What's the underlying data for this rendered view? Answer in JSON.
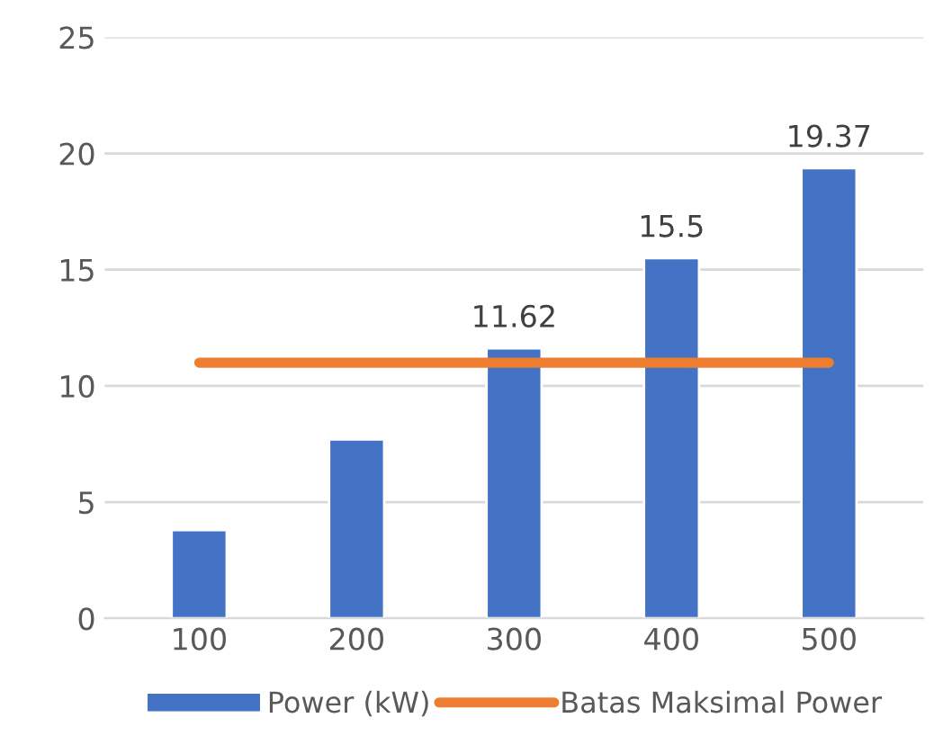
{
  "chart_data": {
    "type": "bar",
    "categories": [
      "100",
      "200",
      "300",
      "400",
      "500"
    ],
    "series": [
      {
        "name": "Power (kW)",
        "color": "#4472c4",
        "values": [
          3.8,
          7.7,
          11.62,
          15.5,
          19.37
        ],
        "value_labels": [
          null,
          null,
          "11.62",
          "15.5",
          "19.37"
        ]
      },
      {
        "name": "Batas Maksimal Power",
        "type": "line",
        "color": "#ed7d31",
        "values": [
          11,
          11,
          11,
          11,
          11
        ]
      }
    ],
    "ylim": [
      0,
      25
    ],
    "yticks": [
      0,
      5,
      10,
      15,
      20,
      25
    ],
    "grid": "y",
    "legend": "bottom"
  }
}
